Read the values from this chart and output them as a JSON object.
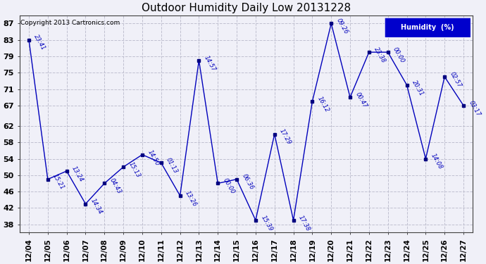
{
  "title": "Outdoor Humidity Daily Low 20131228",
  "copyright": "Copyright 2013 Cartronics.com",
  "legend_label": "Humidity  (%)",
  "x_labels": [
    "12/04",
    "12/05",
    "12/06",
    "12/07",
    "12/08",
    "12/09",
    "12/10",
    "12/11",
    "12/12",
    "12/13",
    "12/14",
    "12/15",
    "12/16",
    "12/17",
    "12/18",
    "12/19",
    "12/20",
    "12/21",
    "12/22",
    "12/23",
    "12/24",
    "12/25",
    "12/26",
    "12/27"
  ],
  "y_values": [
    83,
    49,
    51,
    43,
    48,
    52,
    55,
    53,
    45,
    78,
    48,
    49,
    39,
    60,
    39,
    68,
    87,
    69,
    80,
    80,
    72,
    54,
    74,
    67
  ],
  "time_labels": [
    "23:41",
    "15:21",
    "13:24",
    "14:34",
    "04:43",
    "15:13",
    "14:50",
    "01:13",
    "13:26",
    "14:57",
    "00:00",
    "06:36",
    "15:39",
    "17:29",
    "17:38",
    "16:12",
    "09:26",
    "00:47",
    "23:38",
    "00:00",
    "20:31",
    "14:08",
    "02:57",
    "03:17"
  ],
  "line_color": "#0000bb",
  "marker_color": "#000080",
  "background_color": "#f0f0f8",
  "grid_color": "#c0c0d0",
  "y_ticks": [
    38,
    42,
    46,
    50,
    54,
    58,
    62,
    67,
    71,
    75,
    79,
    83,
    87
  ],
  "y_min": 36,
  "y_max": 89,
  "figwidth": 6.9,
  "figheight": 3.75,
  "dpi": 100
}
